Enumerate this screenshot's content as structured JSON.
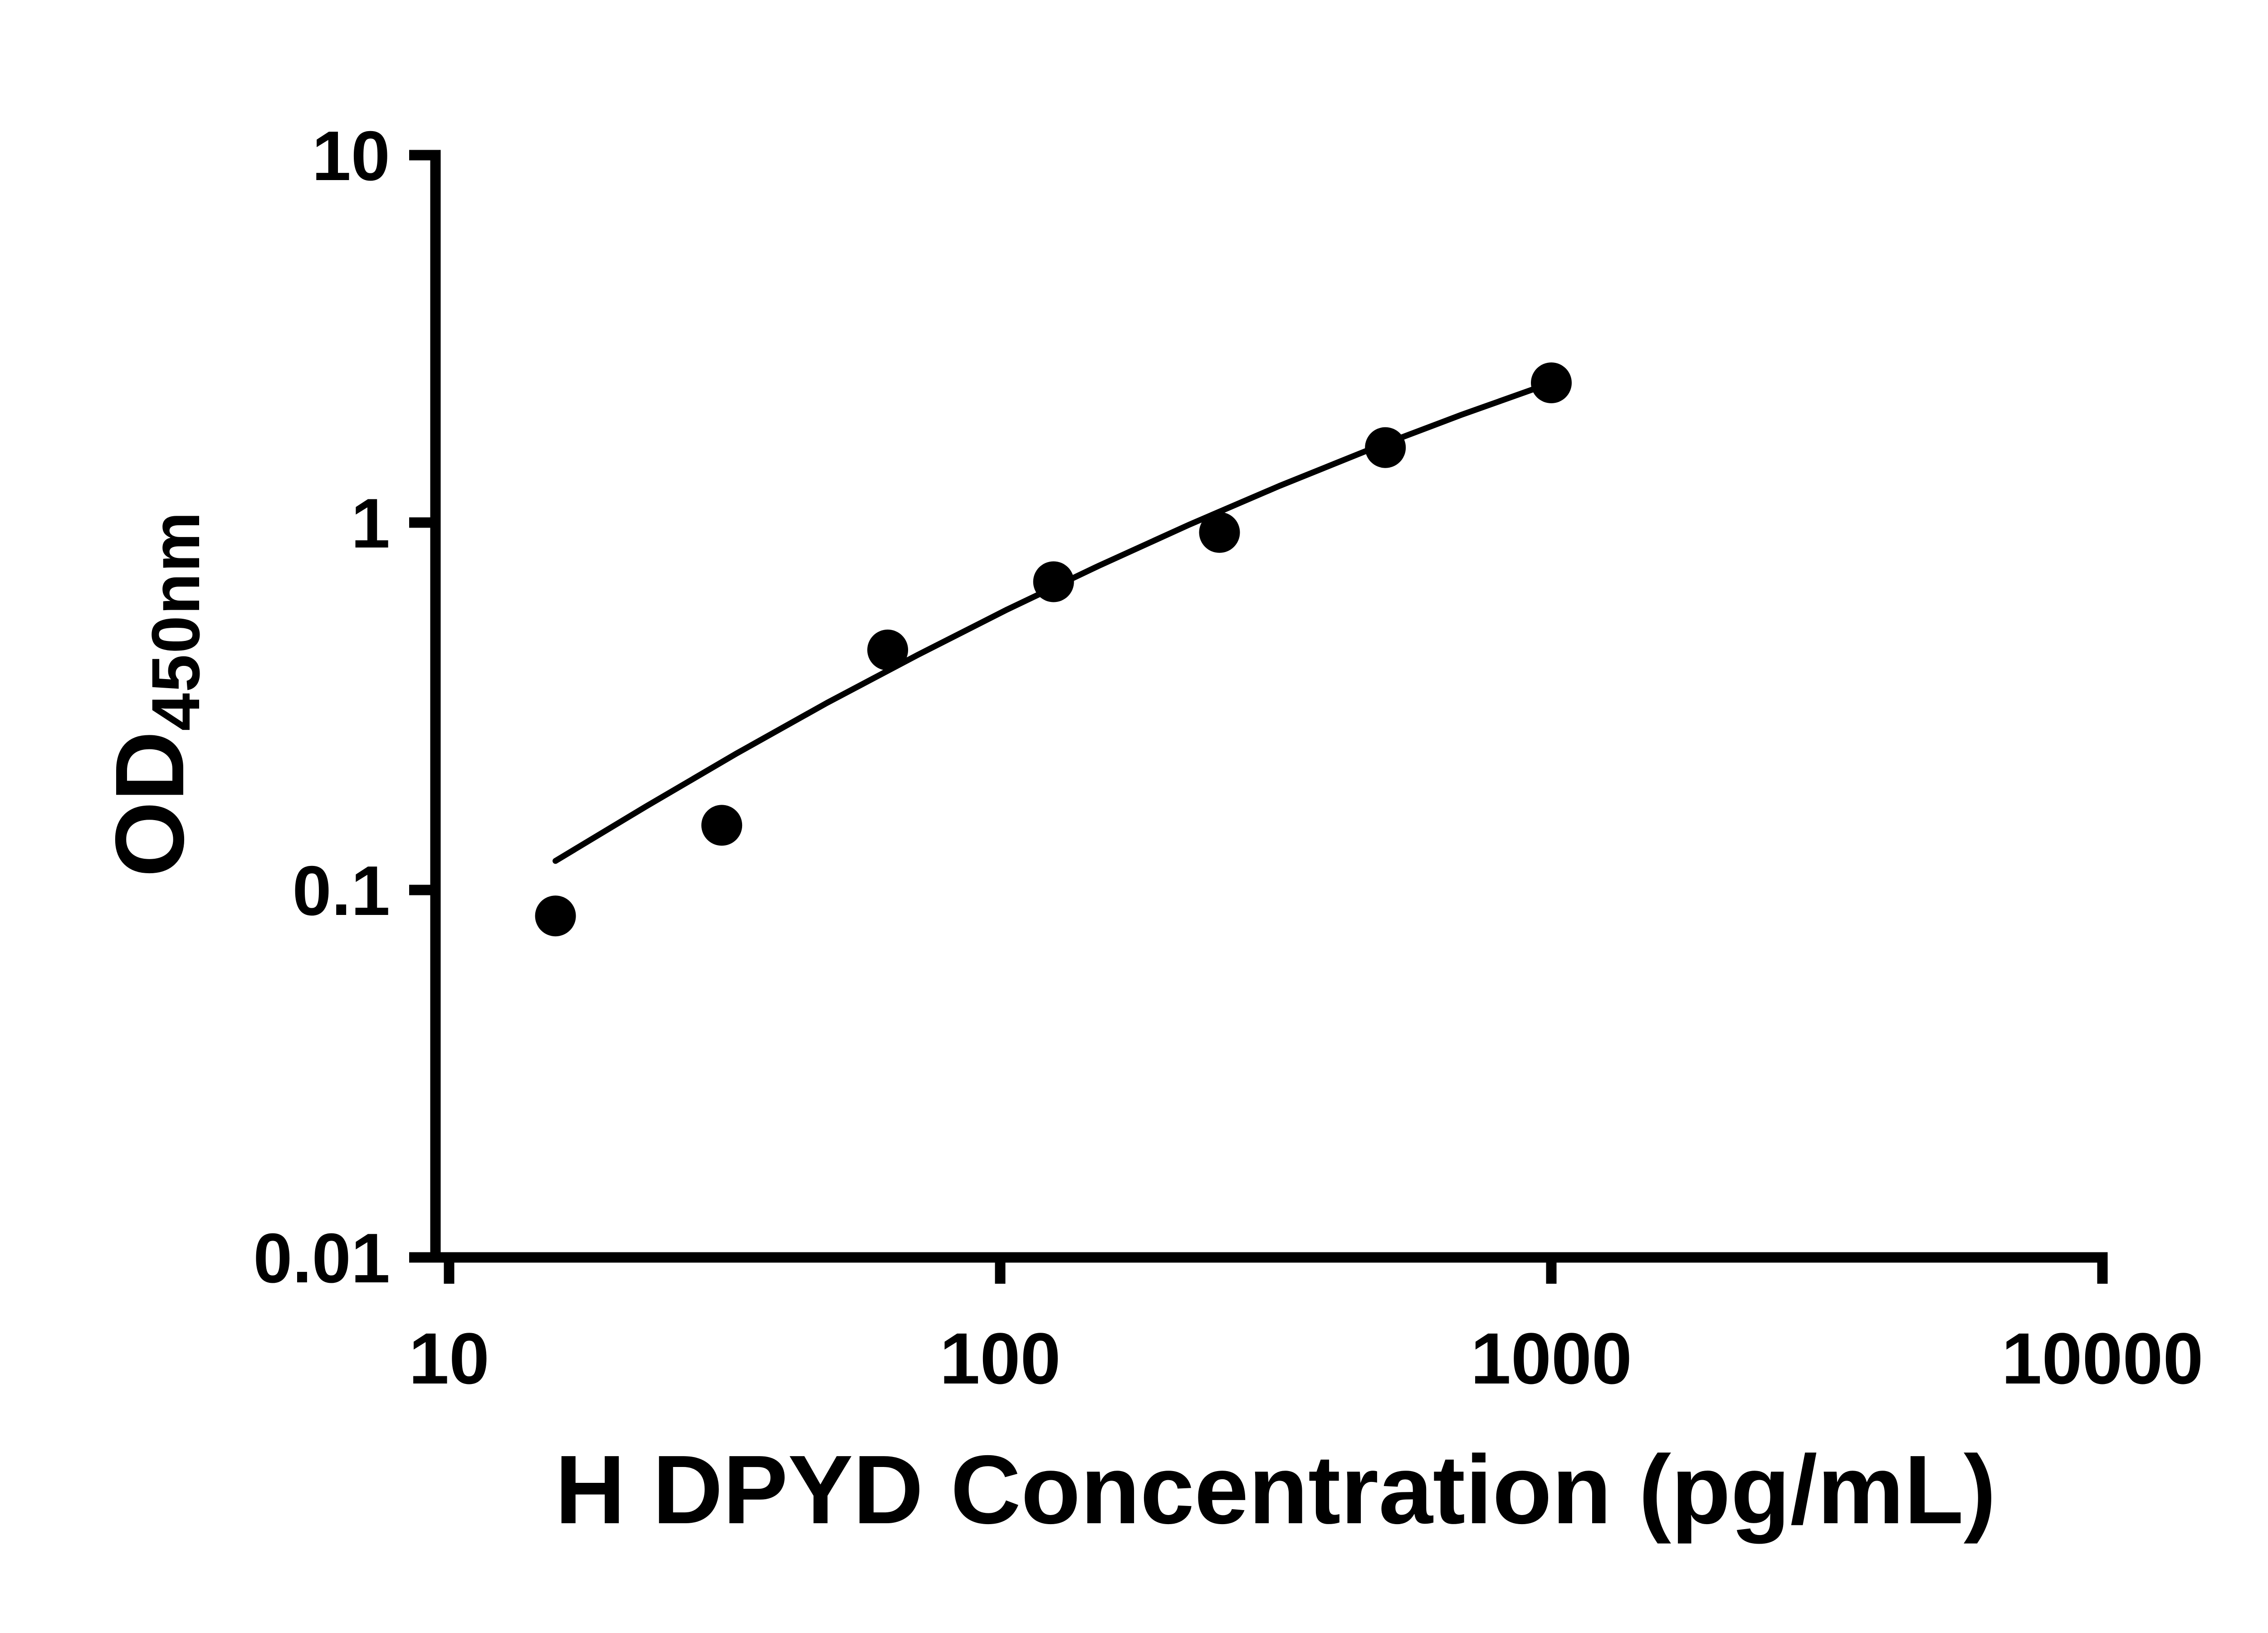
{
  "page": {
    "background": "#ffffff"
  },
  "style": {
    "axis_color": "#000000",
    "marker_color": "#000000",
    "curve_color": "#000000"
  },
  "chart_data": {
    "type": "scatter",
    "title": "",
    "xlabel": "H DPYD Concentration (pg/mL)",
    "ylabel": "OD450nm",
    "ylabel_main": "OD",
    "ylabel_sub": "450nm",
    "x_scale": "log",
    "y_scale": "log",
    "xlim": [
      10,
      10000
    ],
    "ylim": [
      0.01,
      10
    ],
    "x_ticks": [
      "10",
      "100",
      "1000",
      "10000"
    ],
    "y_ticks": [
      "10",
      "1",
      "0.1",
      "0.01"
    ],
    "grid": false,
    "legend": false,
    "series": [
      {
        "name": "",
        "marker": "filled-circle",
        "color": "#000000",
        "points": [
          {
            "x": 15.6,
            "y": 0.085
          },
          {
            "x": 31.25,
            "y": 0.15
          },
          {
            "x": 62.5,
            "y": 0.45
          },
          {
            "x": 125,
            "y": 0.69
          },
          {
            "x": 250,
            "y": 0.94
          },
          {
            "x": 500,
            "y": 1.6
          },
          {
            "x": 1000,
            "y": 2.4
          }
        ]
      }
    ],
    "fit_curve": {
      "color": "#000000",
      "points": [
        {
          "x": 15.6,
          "y": 0.12
        },
        {
          "x": 22.8,
          "y": 0.169
        },
        {
          "x": 33.2,
          "y": 0.235
        },
        {
          "x": 48.5,
          "y": 0.323
        },
        {
          "x": 70.8,
          "y": 0.436
        },
        {
          "x": 103,
          "y": 0.58
        },
        {
          "x": 151,
          "y": 0.763
        },
        {
          "x": 220,
          "y": 0.986
        },
        {
          "x": 321,
          "y": 1.258
        },
        {
          "x": 469,
          "y": 1.582
        },
        {
          "x": 686,
          "y": 1.963
        },
        {
          "x": 1000,
          "y": 2.4
        }
      ]
    }
  }
}
